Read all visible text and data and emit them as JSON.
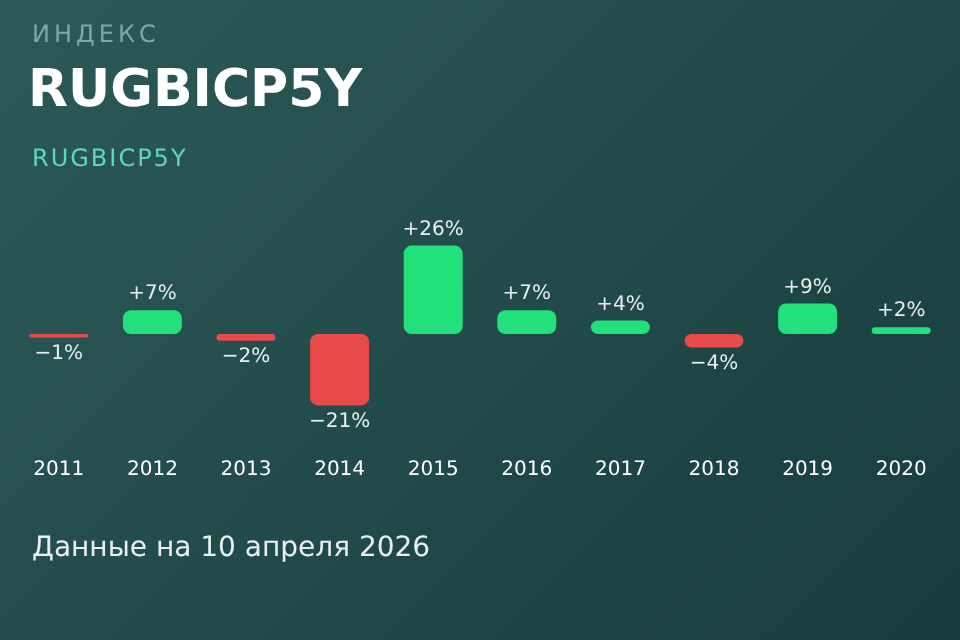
{
  "chart_data": {
    "type": "bar",
    "title": "RUGBICP5Y",
    "subtitle": "RUGBICP5Y",
    "annotations": [
      "ИНДЕКС",
      "Данные на 10 апреля 2026"
    ],
    "categories": [
      "2011",
      "2012",
      "2013",
      "2014",
      "2015",
      "2016",
      "2017",
      "2018",
      "2019",
      "2020"
    ],
    "values": [
      -1,
      7,
      -2,
      -21,
      26,
      7,
      4,
      -4,
      9,
      2
    ],
    "colors": [
      "#e84a4a",
      "#22e07a",
      "#e84a4a",
      "#e84a4a",
      "#22e07a",
      "#22e07a",
      "#22e07a",
      "#e84a4a",
      "#22e07a",
      "#22e07a"
    ],
    "value_labels": [
      "−1%",
      "+7%",
      "−2%",
      "−21%",
      "+26%",
      "+7%",
      "+4%",
      "−4%",
      "+9%",
      "+2%"
    ]
  }
}
